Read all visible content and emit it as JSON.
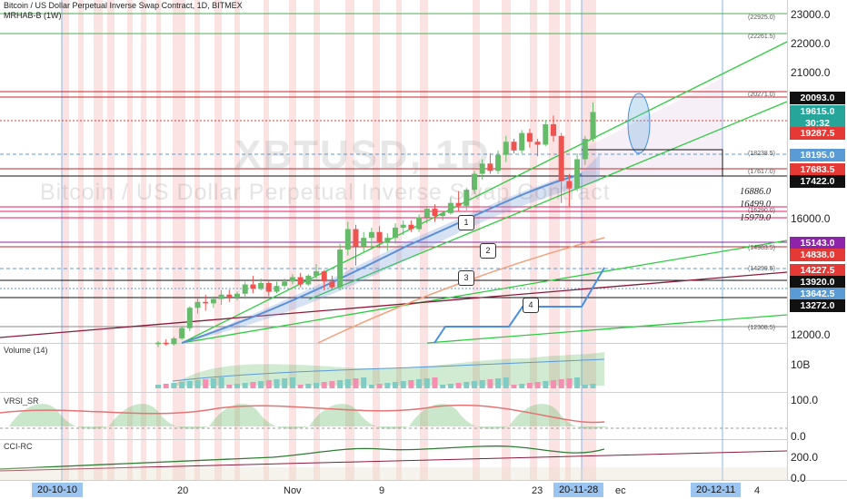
{
  "header": {
    "title": "Bitcoin / US Dollar Perpetual Inverse Swap Contract, 1D, BITMEX",
    "study": "MRHAB-B (1W)"
  },
  "watermark": {
    "symbol": "XBTUSD, 1D",
    "name": "Bitcoin / US Dollar Perpetual Inverse Swap Contract"
  },
  "panes": {
    "volume_label": "Volume (14)",
    "rsi_label": "VRSI_SR",
    "cci_label": "CCI-RC"
  },
  "price_axis_ticks": [
    "23000.0",
    "22000.0",
    "21000.0",
    "16000.0",
    "12000.0"
  ],
  "price_labels": [
    {
      "text": "20093.0",
      "color": "#111111"
    },
    {
      "text": "19615.0",
      "color": "#26a69a"
    },
    {
      "text": "30:32",
      "color": "#26a69a"
    },
    {
      "text": "19287.5",
      "color": "#e53935"
    },
    {
      "text": "18195.0",
      "color": "#5b9bd5"
    },
    {
      "text": "17683.5",
      "color": "#e53935"
    },
    {
      "text": "17422.0",
      "color": "#111111"
    },
    {
      "text": "15143.0",
      "color": "#8e24aa"
    },
    {
      "text": "14838.0",
      "color": "#e53935"
    },
    {
      "text": "14227.5",
      "color": "#e53935"
    },
    {
      "text": "13920.0",
      "color": "#111111"
    },
    {
      "text": "13642.5",
      "color": "#5b9bd5"
    },
    {
      "text": "13272.0",
      "color": "#111111"
    }
  ],
  "volume_axis": [
    "10B"
  ],
  "rsi_axis": [
    "100.0",
    "0.0"
  ],
  "cci_axis": [
    "200.0",
    "0.0"
  ],
  "levels": [
    "16886.0",
    "16499.0",
    "15979.0"
  ],
  "fib_labels": [
    "(22925.0)",
    "(22261.5)",
    "(20271.0)",
    "(18238.5)",
    "(17617.0)",
    "(16290.0)",
    "(14983.5)",
    "(14299.5)",
    "(12308.5)"
  ],
  "wave_markers": [
    "1",
    "2",
    "3",
    "4"
  ],
  "x_axis": {
    "labels": [
      "20",
      "Nov",
      "9",
      "23",
      "ec",
      "4"
    ],
    "date_boxes": [
      "20-10-10",
      "20-11-28",
      "20-12-11"
    ]
  },
  "chart_data": {
    "type": "candlestick",
    "title": "Bitcoin / US Dollar Perpetual Inverse Swap Contract, 1D, BITMEX",
    "ylim": [
      11800,
      23400
    ],
    "ohlc": [
      [
        11650,
        11750,
        11550,
        11700
      ],
      [
        11700,
        11820,
        11600,
        11650
      ],
      [
        11650,
        11900,
        11600,
        11850
      ],
      [
        11850,
        12250,
        11800,
        12200
      ],
      [
        12200,
        12950,
        12100,
        12900
      ],
      [
        12900,
        13250,
        12700,
        13100
      ],
      [
        13100,
        13350,
        12800,
        13050
      ],
      [
        13050,
        13300,
        12900,
        13200
      ],
      [
        13200,
        13500,
        13000,
        13350
      ],
      [
        13350,
        13520,
        13100,
        13250
      ],
      [
        13250,
        13450,
        13150,
        13380
      ],
      [
        13380,
        13800,
        13200,
        13700
      ],
      [
        13700,
        14000,
        13400,
        13550
      ],
      [
        13550,
        13900,
        13500,
        13750
      ],
      [
        13750,
        13850,
        13300,
        13450
      ],
      [
        13450,
        13800,
        13400,
        13650
      ],
      [
        13650,
        13900,
        13600,
        13800
      ],
      [
        13800,
        14050,
        13700,
        13950
      ],
      [
        13950,
        14100,
        13600,
        13700
      ],
      [
        13700,
        14050,
        13650,
        14000
      ],
      [
        14000,
        14400,
        13900,
        14150
      ],
      [
        14150,
        14200,
        13500,
        13800
      ],
      [
        13800,
        14000,
        13550,
        13600
      ],
      [
        13600,
        15100,
        13500,
        14900
      ],
      [
        14900,
        15850,
        14700,
        15600
      ],
      [
        15600,
        15750,
        14350,
        15000
      ],
      [
        15000,
        15500,
        14800,
        15300
      ],
      [
        15300,
        15650,
        14900,
        15500
      ],
      [
        15500,
        15700,
        14950,
        15150
      ],
      [
        15150,
        15450,
        14850,
        15300
      ],
      [
        15300,
        15800,
        15100,
        15650
      ],
      [
        15650,
        15900,
        15400,
        15750
      ],
      [
        15750,
        15900,
        15500,
        15600
      ],
      [
        15600,
        16100,
        15500,
        16000
      ],
      [
        16000,
        16400,
        15800,
        16300
      ],
      [
        16300,
        16450,
        15850,
        16050
      ],
      [
        16050,
        16200,
        15900,
        16150
      ],
      [
        16150,
        16700,
        16100,
        16500
      ],
      [
        16500,
        16900,
        16200,
        16400
      ],
      [
        16400,
        17000,
        16250,
        16950
      ],
      [
        16950,
        17600,
        16800,
        17500
      ],
      [
        17500,
        18000,
        17300,
        17850
      ],
      [
        17850,
        18200,
        17500,
        17600
      ],
      [
        17600,
        18300,
        17500,
        18150
      ],
      [
        18150,
        18800,
        17900,
        18600
      ],
      [
        18600,
        18700,
        18200,
        18300
      ],
      [
        18300,
        19000,
        18200,
        18900
      ],
      [
        18900,
        19050,
        18400,
        18600
      ],
      [
        18600,
        18700,
        18100,
        18500
      ],
      [
        18500,
        19350,
        18450,
        19200
      ],
      [
        19200,
        19500,
        18600,
        18800
      ],
      [
        18800,
        18900,
        16500,
        17250
      ],
      [
        17250,
        17500,
        16350,
        17000
      ],
      [
        17000,
        18200,
        16900,
        18000
      ],
      [
        18000,
        18800,
        17800,
        18700
      ],
      [
        18700,
        19950,
        18600,
        19620
      ]
    ]
  }
}
